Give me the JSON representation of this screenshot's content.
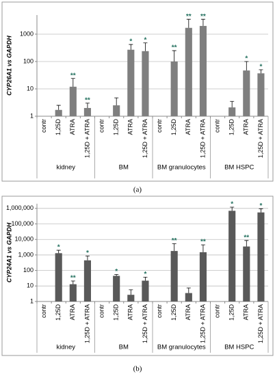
{
  "chart_data": [
    {
      "type": "bar",
      "caption": "(a)",
      "y_label": "CYP26A1 vs GAPDH",
      "log_scale": true,
      "grid": true,
      "color": "#7f7f7f",
      "label_color": "#22705e",
      "ylim": [
        1,
        5000
      ],
      "yticks": [
        1,
        10,
        100,
        1000
      ],
      "groups": [
        {
          "name": "kidney",
          "categories": [
            "contr",
            "1,25D",
            "ATRA",
            "1,25D + ATRA"
          ],
          "values": [
            null,
            1.7,
            12,
            2
          ],
          "errors": [
            null,
            0.8,
            12,
            1
          ],
          "labels": [
            null,
            null,
            "**",
            "**"
          ]
        },
        {
          "name": "BM",
          "categories": [
            "contr",
            "1,25D",
            "ATRA",
            "1,25D + ATRA"
          ],
          "values": [
            null,
            2.5,
            270,
            240
          ],
          "errors": [
            null,
            2.2,
            150,
            240
          ],
          "labels": [
            null,
            null,
            "*",
            "*"
          ]
        },
        {
          "name": "BM granulocytes",
          "categories": [
            "contr",
            "1,25D",
            "ATRA",
            "1,25D + ATRA"
          ],
          "values": [
            null,
            100,
            1700,
            2000
          ],
          "errors": [
            null,
            150,
            1800,
            1500
          ],
          "labels": [
            null,
            "**",
            "**",
            "**"
          ]
        },
        {
          "name": "BM HSPC",
          "categories": [
            "contr",
            "1,25D",
            "ATRA",
            "1,25D + ATRA"
          ],
          "values": [
            null,
            2.1,
            47,
            37
          ],
          "errors": [
            null,
            1.4,
            53,
            13
          ],
          "labels": [
            null,
            null,
            "*",
            "*"
          ]
        }
      ]
    },
    {
      "type": "bar",
      "caption": "(b)",
      "y_label": "CYP24A1 vs GAPDH",
      "log_scale": true,
      "grid": true,
      "color": "#595959",
      "label_color": "#22705e",
      "ylim": [
        1,
        2000000
      ],
      "yticks": [
        1,
        10,
        100,
        {
          "value": 1000,
          "label": "1,000"
        },
        {
          "value": 10000,
          "label": "10,000"
        },
        {
          "value": 100000,
          "label": "100,000"
        },
        {
          "value": 1000000,
          "label": "1,000,000"
        }
      ],
      "groups": [
        {
          "name": "kidney",
          "categories": [
            "contr",
            "1,25D",
            "ATRA",
            "1,25D + ATRA"
          ],
          "values": [
            null,
            1300,
            13,
            450
          ],
          "errors": [
            null,
            700,
            8,
            400
          ],
          "labels": [
            null,
            "*",
            "**",
            "*"
          ]
        },
        {
          "name": "BM",
          "categories": [
            "contr",
            "1,25D",
            "ATRA",
            "1,25D + ATRA"
          ],
          "values": [
            null,
            45,
            2.7,
            22
          ],
          "errors": [
            null,
            10,
            3,
            15
          ],
          "labels": [
            null,
            "*",
            null,
            "*"
          ]
        },
        {
          "name": "BM granulocytes",
          "categories": [
            "contr",
            "1,25D",
            "ATRA",
            "1,25D + ATRA"
          ],
          "values": [
            null,
            1800,
            3.5,
            1500
          ],
          "errors": [
            null,
            3500,
            4,
            3000
          ],
          "labels": [
            null,
            "**",
            null,
            "**"
          ]
        },
        {
          "name": "BM HSPC",
          "categories": [
            "contr",
            "1,25D",
            "ATRA",
            "1,25D + ATRA"
          ],
          "values": [
            null,
            700000,
            3500,
            550000
          ],
          "errors": [
            null,
            500000,
            5000,
            400000
          ],
          "labels": [
            null,
            "*",
            "**",
            "*"
          ]
        }
      ]
    }
  ]
}
